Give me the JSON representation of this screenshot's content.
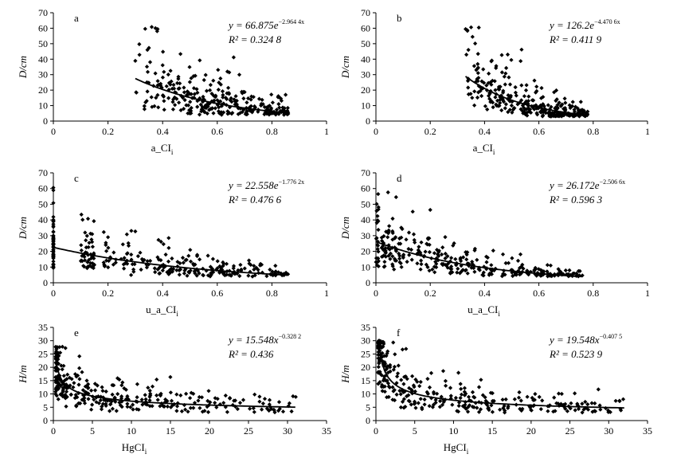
{
  "chart_data": [
    {
      "type": "scatter",
      "panel_label": "a",
      "xlabel": "a_CI",
      "xlabel_sub": "i",
      "ylabel": "D/cm",
      "xlim": [
        0,
        1
      ],
      "ylim": [
        0,
        70
      ],
      "xticks": [
        "0",
        "0.2",
        "0.4",
        "0.6",
        "0.8",
        "1"
      ],
      "yticks": [
        "0",
        "10",
        "20",
        "30",
        "40",
        "50",
        "60",
        "70"
      ],
      "equation": "y = 66.875e",
      "equation_exp": "−2.964 4x",
      "r2": "R² = 0.324 8",
      "trend": {
        "model": "exp",
        "a": 66.875,
        "b": -2.9644,
        "x_range": [
          0.3,
          0.86
        ]
      },
      "points": {
        "x_range": [
          0.3,
          0.86
        ],
        "seed": 11,
        "n": 300,
        "xmode": "a",
        "spread": 0.55,
        "ymin": 4,
        "ymax": 61
      }
    },
    {
      "type": "scatter",
      "panel_label": "b",
      "xlabel": "a_CI",
      "xlabel_sub": "i",
      "ylabel": "D/cm",
      "xlim": [
        0,
        1
      ],
      "ylim": [
        0,
        70
      ],
      "xticks": [
        "0",
        "0.2",
        "0.4",
        "0.6",
        "0.8",
        "1"
      ],
      "yticks": [
        "0",
        "10",
        "20",
        "30",
        "40",
        "50",
        "60",
        "70"
      ],
      "equation": "y = 126.2e",
      "equation_exp": "−4.470 6x",
      "r2": "R² = 0.411 9",
      "trend": {
        "model": "exp",
        "a": 126.2,
        "b": -4.4706,
        "x_range": [
          0.33,
          0.76
        ]
      },
      "points": {
        "x_range": [
          0.33,
          0.78
        ],
        "seed": 23,
        "n": 300,
        "xmode": "b",
        "spread": 0.5,
        "ymin": 3,
        "ymax": 61
      }
    },
    {
      "type": "scatter",
      "panel_label": "c",
      "xlabel": "u_a_CI",
      "xlabel_sub": "i",
      "ylabel": "D/cm",
      "xlim": [
        0,
        1
      ],
      "ylim": [
        0,
        70
      ],
      "xticks": [
        "0",
        "0.2",
        "0.4",
        "0.6",
        "0.8",
        "1"
      ],
      "yticks": [
        "0",
        "10",
        "20",
        "30",
        "40",
        "50",
        "60",
        "70"
      ],
      "equation": "y = 22.558e",
      "equation_exp": "−1.776 2x",
      "r2": "R² = 0.476 6",
      "trend": {
        "model": "exp",
        "a": 22.558,
        "b": -1.7762,
        "x_range": [
          0,
          0.86
        ]
      },
      "points": {
        "x_range": [
          0,
          0.86
        ],
        "seed": 37,
        "n": 320,
        "xmode": "c",
        "spread": 0.45,
        "ymin": 4,
        "ymax": 61
      }
    },
    {
      "type": "scatter",
      "panel_label": "d",
      "xlabel": "u_a_CI",
      "xlabel_sub": "i",
      "ylabel": "D/cm",
      "xlim": [
        0,
        1
      ],
      "ylim": [
        0,
        70
      ],
      "xticks": [
        "0",
        "0.2",
        "0.4",
        "0.6",
        "0.8",
        "1"
      ],
      "yticks": [
        "0",
        "10",
        "20",
        "30",
        "40",
        "50",
        "60",
        "70"
      ],
      "equation": "y = 26.172e",
      "equation_exp": "−2.506 6x",
      "r2": "R² = 0.596 3",
      "trend": {
        "model": "exp",
        "a": 26.172,
        "b": -2.5066,
        "x_range": [
          0,
          0.76
        ]
      },
      "points": {
        "x_range": [
          0,
          0.76
        ],
        "seed": 53,
        "n": 320,
        "xmode": "d",
        "spread": 0.42,
        "ymin": 4,
        "ymax": 61
      }
    },
    {
      "type": "scatter",
      "panel_label": "e",
      "xlabel": "HgCI",
      "xlabel_sub": "i",
      "ylabel": "H/m",
      "xlim": [
        0,
        35
      ],
      "ylim": [
        0,
        35
      ],
      "xticks": [
        "0",
        "5",
        "10",
        "15",
        "20",
        "25",
        "30",
        "35"
      ],
      "yticks": [
        "0",
        "5",
        "10",
        "15",
        "20",
        "25",
        "30",
        "35"
      ],
      "equation": "y = 15.548x",
      "equation_exp": "−0.328 2",
      "r2": "R² = 0.436",
      "trend": {
        "model": "pow",
        "a": 15.548,
        "b": -0.3282,
        "x_range": [
          0.4,
          31
        ]
      },
      "points": {
        "x_range": [
          0.3,
          31.3
        ],
        "seed": 71,
        "n": 320,
        "xmode": "e",
        "spread": 0.38,
        "ymin": 3,
        "ymax": 28
      }
    },
    {
      "type": "scatter",
      "panel_label": "f",
      "xlabel": "HgCI",
      "xlabel_sub": "i",
      "ylabel": "H/m",
      "xlim": [
        0,
        35
      ],
      "ylim": [
        0,
        35
      ],
      "xticks": [
        "0",
        "5",
        "10",
        "15",
        "20",
        "25",
        "30",
        "35"
      ],
      "yticks": [
        "0",
        "5",
        "10",
        "15",
        "20",
        "25",
        "30",
        "35"
      ],
      "equation": "y = 19.548x",
      "equation_exp": "−0.407 5",
      "r2": "R² = 0.523 9",
      "trend": {
        "model": "pow",
        "a": 19.548,
        "b": -0.4075,
        "x_range": [
          0.4,
          32
        ]
      },
      "points": {
        "x_range": [
          0.3,
          32
        ],
        "seed": 97,
        "n": 320,
        "xmode": "f",
        "spread": 0.36,
        "ymin": 3,
        "ymax": 30
      }
    }
  ]
}
